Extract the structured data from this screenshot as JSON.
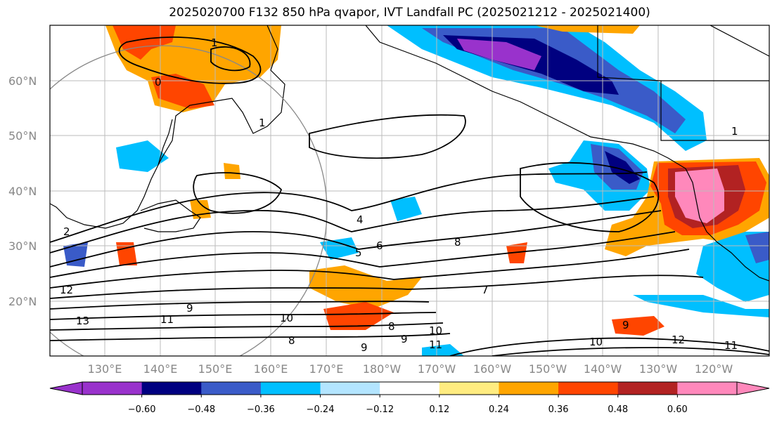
{
  "title": "2025020700 F132 850 hPa qvapor, IVT Landfall PC (2025021212 - 2025021400)",
  "lat_labels": [
    "60°N",
    "50°N",
    "40°N",
    "30°N",
    "20°N"
  ],
  "lon_labels": [
    "130°E",
    "140°E",
    "150°E",
    "160°E",
    "170°E",
    "180°W",
    "170°W",
    "160°W",
    "150°W",
    "140°W",
    "130°W",
    "120°W"
  ],
  "colorbar": {
    "colors": [
      "#9932cc",
      "#000080",
      "#3a5bc8",
      "#00bfff",
      "#b3e5ff",
      "#ffffff",
      "#ffec80",
      "#ffa500",
      "#ff4500",
      "#b22222",
      "#ff88bb"
    ],
    "tick_labels": [
      "−0.60",
      "−0.48",
      "−0.36",
      "−0.24",
      "−0.12",
      "0.12",
      "0.24",
      "0.36",
      "0.48",
      "0.60"
    ]
  },
  "contour_labels": [
    "1",
    "0",
    "1",
    "2",
    "12",
    "13",
    "11",
    "9",
    "10",
    "4",
    "5",
    "6",
    "8",
    "7",
    "8",
    "10",
    "11",
    "9",
    "8",
    "9",
    "10",
    "12",
    "11",
    "9",
    "1"
  ]
}
